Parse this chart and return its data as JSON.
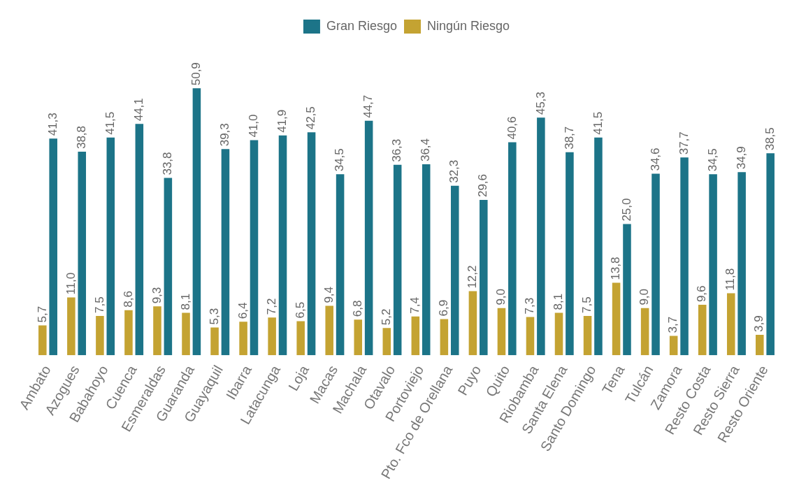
{
  "chart_data": {
    "type": "bar",
    "categories": [
      "Ambato",
      "Azogues",
      "Babahoyo",
      "Cuenca",
      "Esmeraldas",
      "Guaranda",
      "Guayaquil",
      "Ibarra",
      "Latacunga",
      "Loja",
      "Macas",
      "Machala",
      "Otavalo",
      "Portoviejo",
      "Pto. Fco de Orellana",
      "Puyo",
      "Quito",
      "Riobamba",
      "Santa Elena",
      "Santo Domingo",
      "Tena",
      "Tulcán",
      "Zamora",
      "Resto Costa",
      "Resto Sierra",
      "Resto Oriente"
    ],
    "series": [
      {
        "name": "Ningún Riesgo",
        "color": "#c4a332",
        "values": [
          5.7,
          11.0,
          7.5,
          8.6,
          9.3,
          8.1,
          5.3,
          6.4,
          7.2,
          6.5,
          9.4,
          6.8,
          5.2,
          7.4,
          6.9,
          12.2,
          9.0,
          7.3,
          8.1,
          7.5,
          13.8,
          9.0,
          3.7,
          9.6,
          11.8,
          3.9
        ],
        "value_labels": [
          "5,7",
          "11,0",
          "7,5",
          "8,6",
          "9,3",
          "8,1",
          "5,3",
          "6,4",
          "7,2",
          "6,5",
          "9,4",
          "6,8",
          "5,2",
          "7,4",
          "6,9",
          "12,2",
          "9,0",
          "7,3",
          "8,1",
          "7,5",
          "13,8",
          "9,0",
          "3,7",
          "9,6",
          "11,8",
          "3,9"
        ]
      },
      {
        "name": "Gran Riesgo",
        "color": "#1c7488",
        "values": [
          41.3,
          38.8,
          41.5,
          44.1,
          33.8,
          50.9,
          39.3,
          41.0,
          41.9,
          42.5,
          34.5,
          44.7,
          36.3,
          36.4,
          32.3,
          29.6,
          40.6,
          45.3,
          38.7,
          41.5,
          25.0,
          34.6,
          37.7,
          34.5,
          34.9,
          38.5
        ],
        "value_labels": [
          "41,3",
          "38,8",
          "41,5",
          "44,1",
          "33,8",
          "50,9",
          "39,3",
          "41,0",
          "41,9",
          "42,5",
          "34,5",
          "44,7",
          "36,3",
          "36,4",
          "32,3",
          "29,6",
          "40,6",
          "45,3",
          "38,7",
          "41,5",
          "25,0",
          "34,6",
          "37,7",
          "34,5",
          "34,9",
          "38,5"
        ]
      }
    ],
    "legend": "top"
  }
}
